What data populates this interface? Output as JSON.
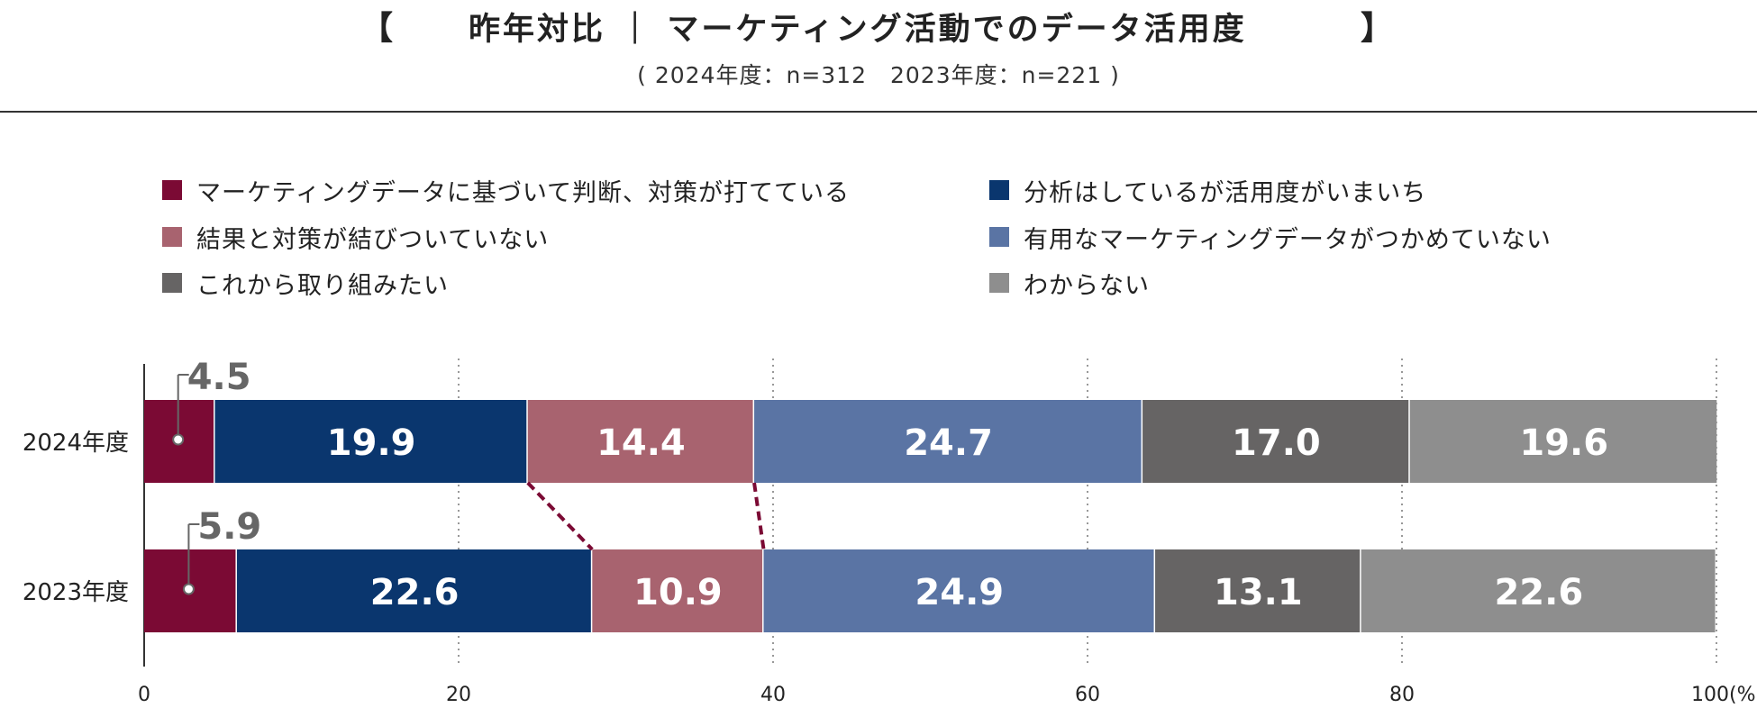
{
  "header": {
    "bracket_open": "【",
    "bracket_close": "】",
    "title": "昨年対比 ｜ マーケティング活動でのデータ活用度",
    "subtitle": "( 2024年度：n=312　2023年度：n=221 )"
  },
  "chart_data": {
    "type": "bar",
    "orientation": "horizontal",
    "stacked": true,
    "title": "昨年対比 ｜ マーケティング活動でのデータ活用度",
    "categories": [
      "2024年度",
      "2023年度"
    ],
    "series": [
      {
        "name": "マーケティングデータに基づいて判断、対策が打てている",
        "color": "#7b0a34",
        "values": [
          4.5,
          5.9
        ]
      },
      {
        "name": "分析はしているが活用度がいまいち",
        "color": "#0a366e",
        "values": [
          19.9,
          22.6
        ]
      },
      {
        "name": "結果と対策が結びついていない",
        "color": "#a8636f",
        "values": [
          14.4,
          10.9
        ]
      },
      {
        "name": "有用なマーケティングデータがつかめていない",
        "color": "#5a74a4",
        "values": [
          24.7,
          24.9
        ]
      },
      {
        "name": "これから取り組みたい",
        "color": "#666464",
        "values": [
          17.0,
          13.1
        ]
      },
      {
        "name": "わからない",
        "color": "#8e8e8e",
        "values": [
          19.6,
          22.6
        ]
      }
    ],
    "value_labels": [
      [
        "4.5",
        "19.9",
        "14.4",
        "24.7",
        "17.0",
        "19.6"
      ],
      [
        "5.9",
        "22.6",
        "10.9",
        "24.9",
        "13.1",
        "22.6"
      ]
    ],
    "xlim": [
      0,
      100
    ],
    "xticks": [
      "0",
      "20",
      "40",
      "60",
      "80",
      "100"
    ],
    "xunit": "(%)",
    "grid": "dotted-vertical",
    "legend": "top, two columns"
  }
}
